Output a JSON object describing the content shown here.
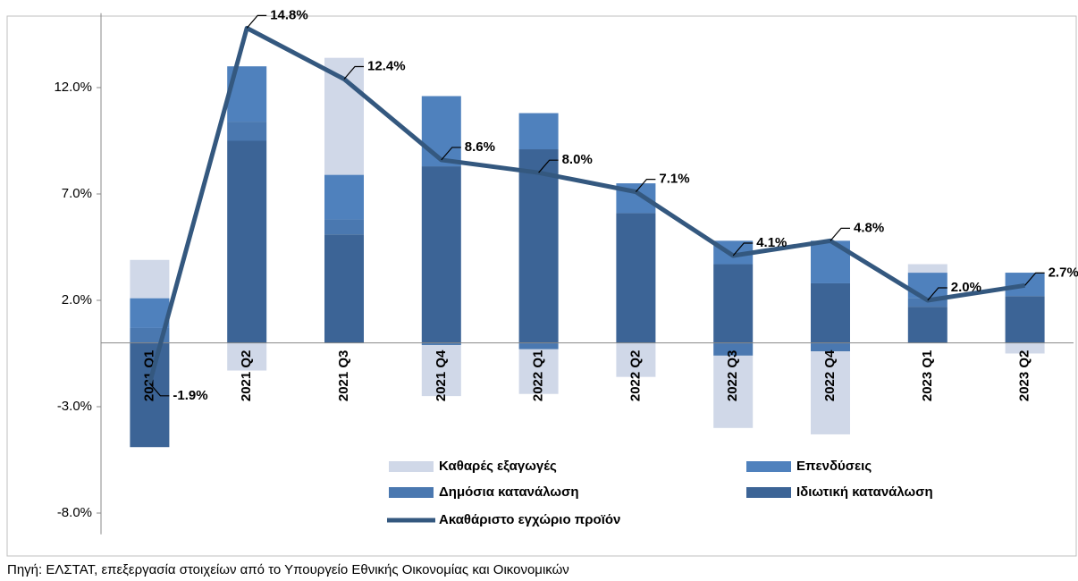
{
  "chart_data": {
    "type": "stacked-bar-line",
    "categories": [
      "2021 Q1",
      "2021 Q2",
      "2021 Q3",
      "2021 Q4",
      "2022 Q1",
      "2022 Q2",
      "2022 Q3",
      "2022 Q4",
      "2023 Q1",
      "2023 Q2"
    ],
    "series": [
      {
        "name": "Ιδιωτική κατανάλωση",
        "color": "#3c6496",
        "values": [
          -4.9,
          9.5,
          5.1,
          8.3,
          9.1,
          6.1,
          3.7,
          2.8,
          1.7,
          2.2
        ]
      },
      {
        "name": "Δημόσια κατανάλωση",
        "color": "#4a78b0",
        "values": [
          0.7,
          0.9,
          0.7,
          -0.1,
          -0.3,
          0,
          -0.6,
          -0.4,
          0.4,
          0
        ]
      },
      {
        "name": "Επενδύσεις",
        "color": "#4f81bd",
        "values": [
          1.4,
          2.6,
          2.1,
          3.3,
          1.7,
          1.4,
          1.1,
          2.0,
          1.2,
          1.1
        ]
      },
      {
        "name": "Καθαρές εξαγωγές",
        "color": "#d0d8e8",
        "values": [
          1.8,
          -1.3,
          5.5,
          -2.4,
          -2.1,
          -1.6,
          -3.4,
          -3.9,
          0.4,
          -0.5
        ]
      },
      {
        "name": "Ακαθάριστο εγχώριο προϊόν",
        "color": "#34587f",
        "kind": "line",
        "values": [
          -1.9,
          14.8,
          12.4,
          8.6,
          8.0,
          7.1,
          4.1,
          4.8,
          2.0,
          2.7
        ],
        "value_labels": [
          "-1.9%",
          "14.8%",
          "12.4%",
          "8.6%",
          "8.0%",
          "7.1%",
          "4.1%",
          "4.8%",
          "2.0%",
          "2.7%"
        ]
      }
    ],
    "ylim": [
      -9,
      15.5
    ],
    "yticks": [
      {
        "value": -8,
        "label": "-8.0%"
      },
      {
        "value": -3,
        "label": "-3.0%"
      },
      {
        "value": 2,
        "label": "2.0%"
      },
      {
        "value": 7,
        "label": "7.0%"
      },
      {
        "value": 12,
        "label": "12.0%"
      }
    ],
    "source": "Πηγή: ΕΛΣΤΑΤ, επεξεργασία στοιχείων από το Υπουργείο Εθνικής Οικονομίας και Οικονομικών"
  }
}
